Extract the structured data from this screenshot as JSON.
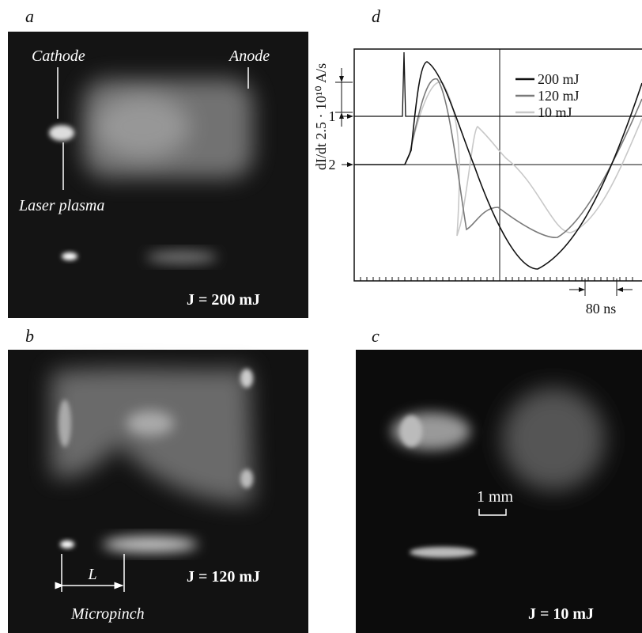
{
  "panels": {
    "a": {
      "label": "a",
      "cathode": "Cathode",
      "anode": "Anode",
      "laser_plasma": "Laser plasma",
      "energy": "J = 200 mJ"
    },
    "d": {
      "label": "d",
      "y_label": "dI/dt 2.5 · 10¹⁰ A/s",
      "legend": [
        "200 mJ",
        "120 mJ",
        "10 mJ"
      ],
      "channels": [
        "1",
        "2"
      ],
      "time_scale": "80 ns"
    },
    "b": {
      "label": "b",
      "length": "L",
      "micropinch": "Micropinch",
      "energy": "J = 120 mJ"
    },
    "c": {
      "label": "c",
      "scale": "1 mm",
      "energy": "J = 10 mJ"
    }
  }
}
